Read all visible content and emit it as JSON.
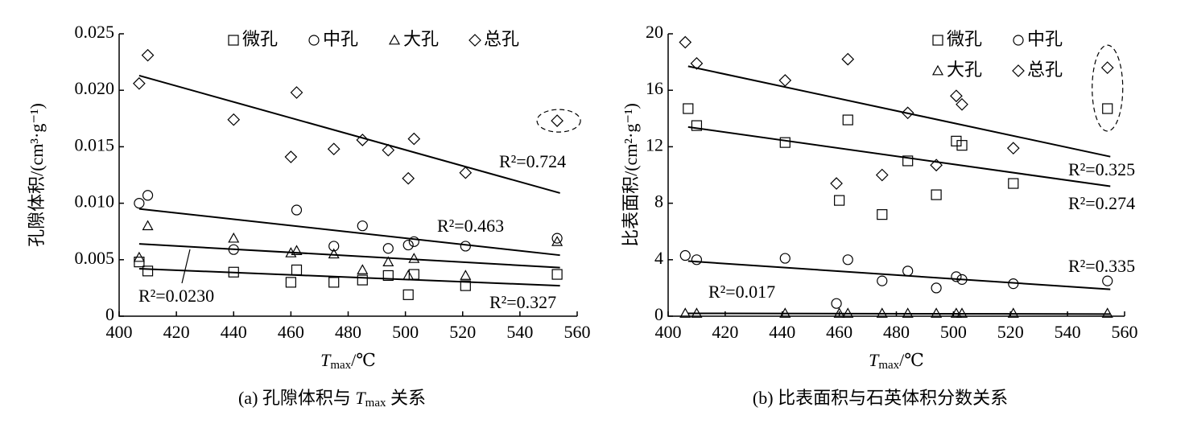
{
  "chart_data": [
    {
      "type": "scatter",
      "ylabel": "孔隙体积/(cm³·g⁻¹)",
      "xlabel": {
        "var": "T",
        "sub": "max",
        "unit": "/℃"
      },
      "caption": [
        "(a) 孔隙体积与 ",
        "T",
        "max",
        " 关系"
      ],
      "xlim": [
        400,
        560
      ],
      "xticks": [
        400,
        420,
        440,
        460,
        480,
        500,
        520,
        540,
        560
      ],
      "ylim": [
        0,
        0.025
      ],
      "yticks": [
        0,
        0.005,
        {
          "value": 0.01,
          "label": "0.010"
        },
        0.015,
        {
          "value": 0.02,
          "label": "0.020"
        },
        0.025
      ],
      "legend_columns": 4,
      "series": [
        {
          "name": "微孔",
          "marker": "square",
          "color": "#000000",
          "x": [
            407,
            410,
            440,
            460,
            462,
            475,
            485,
            494,
            501,
            503,
            521,
            553
          ],
          "values": [
            0.0048,
            0.004,
            0.0039,
            0.003,
            0.0041,
            0.003,
            0.0032,
            0.0036,
            0.0019,
            0.0037,
            0.0027,
            0.0037
          ],
          "trend": {
            "x": [
              407,
              554
            ],
            "y": [
              0.0042,
              0.0027
            ]
          },
          "annotation": "R²=0.327"
        },
        {
          "name": "中孔",
          "marker": "circle",
          "color": "#000000",
          "x": [
            407,
            410,
            440,
            462,
            475,
            485,
            494,
            501,
            503,
            521,
            553
          ],
          "values": [
            0.01,
            0.0107,
            0.0059,
            0.0094,
            0.0062,
            0.008,
            0.006,
            0.0063,
            0.0066,
            0.0062,
            0.0069
          ],
          "trend": {
            "x": [
              407,
              554
            ],
            "y": [
              0.0095,
              0.0054
            ]
          },
          "annotation": "R²=0.463"
        },
        {
          "name": "大孔",
          "marker": "triangle",
          "color": "#000000",
          "x": [
            407,
            410,
            440,
            460,
            462,
            475,
            485,
            494,
            501,
            503,
            521,
            553
          ],
          "values": [
            0.0052,
            0.008,
            0.0069,
            0.0056,
            0.0058,
            0.0055,
            0.0041,
            0.0048,
            0.0036,
            0.0051,
            0.0036,
            0.0066
          ],
          "trend": {
            "x": [
              407,
              554
            ],
            "y": [
              0.0064,
              0.0043
            ]
          },
          "annotation": "R²=0.0230"
        },
        {
          "name": "总孔",
          "marker": "diamond",
          "color": "#000000",
          "x": [
            407,
            410,
            440,
            460,
            462,
            475,
            485,
            494,
            501,
            503,
            521,
            553
          ],
          "values": [
            0.0206,
            0.0231,
            0.0174,
            0.0141,
            0.0198,
            0.0148,
            0.0156,
            0.0147,
            0.0122,
            0.0157,
            0.0127,
            0.0173
          ],
          "trend": {
            "x": [
              407,
              554
            ],
            "y": [
              0.0213,
              0.0109
            ]
          },
          "annotation": "R²=0.724"
        }
      ]
    },
    {
      "type": "scatter",
      "ylabel": "比表面积/(cm²·g⁻¹)",
      "xlabel": {
        "var": "T",
        "sub": "max",
        "unit": "/℃"
      },
      "caption": [
        "(b) 比表面积与石英体积分数关系"
      ],
      "xlim": [
        400,
        560
      ],
      "xticks": [
        400,
        420,
        440,
        460,
        480,
        500,
        520,
        540,
        560
      ],
      "ylim": [
        0,
        20
      ],
      "yticks": [
        0,
        4,
        8,
        12,
        16,
        20
      ],
      "legend_columns": 2,
      "series": [
        {
          "name": "微孔",
          "marker": "square",
          "color": "#000000",
          "x": [
            407,
            410,
            441,
            460,
            463,
            475,
            484,
            494,
            501,
            503,
            521,
            554
          ],
          "values": [
            14.7,
            13.5,
            12.3,
            8.2,
            13.9,
            7.2,
            11.0,
            8.6,
            12.4,
            12.1,
            9.4,
            14.7
          ],
          "trend": {
            "x": [
              407,
              555
            ],
            "y": [
              13.4,
              9.2
            ]
          },
          "annotation": "R²=0.274"
        },
        {
          "name": "中孔",
          "marker": "circle",
          "color": "#000000",
          "x": [
            406,
            410,
            441,
            459,
            463,
            475,
            484,
            494,
            501,
            503,
            521,
            554
          ],
          "values": [
            4.3,
            4.0,
            4.1,
            0.9,
            4.0,
            2.5,
            3.2,
            2.0,
            2.8,
            2.6,
            2.3,
            2.5
          ],
          "trend": {
            "x": [
              407,
              555
            ],
            "y": [
              3.9,
              1.9
            ]
          },
          "annotation": "R²=0.335"
        },
        {
          "name": "大孔",
          "marker": "triangle",
          "color": "#000000",
          "x": [
            406,
            410,
            441,
            460,
            463,
            475,
            484,
            494,
            501,
            503,
            521,
            554
          ],
          "values": [
            0.2,
            0.2,
            0.2,
            0.2,
            0.2,
            0.2,
            0.2,
            0.2,
            0.2,
            0.2,
            0.2,
            0.2
          ],
          "trend": {
            "x": [
              407,
              555
            ],
            "y": [
              0.2,
              0.15
            ]
          },
          "annotation": "R²=0.017"
        },
        {
          "name": "总孔",
          "marker": "diamond",
          "color": "#000000",
          "x": [
            406,
            410,
            441,
            459,
            463,
            475,
            484,
            494,
            501,
            503,
            521,
            554
          ],
          "values": [
            19.4,
            17.9,
            16.7,
            9.4,
            18.2,
            10.0,
            14.4,
            10.7,
            15.6,
            15.0,
            11.9,
            17.6
          ],
          "trend": {
            "x": [
              407,
              555
            ],
            "y": [
              17.7,
              11.3
            ]
          },
          "annotation": "R²=0.325"
        }
      ]
    }
  ]
}
